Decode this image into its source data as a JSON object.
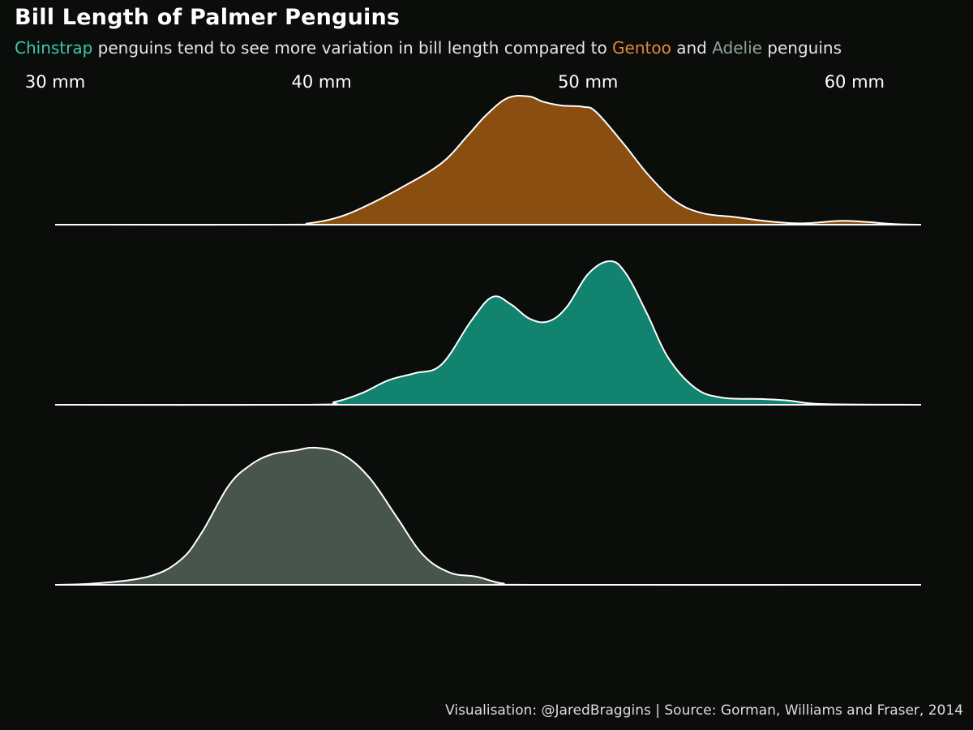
{
  "header": {
    "title": "Bill Length of Palmer Penguins",
    "subtitle_parts": [
      {
        "text": "Chinstrap",
        "role": "chinstrap"
      },
      {
        "text": " penguins tend to see more variation in bill length compared to ",
        "role": "plain"
      },
      {
        "text": "Gentoo",
        "role": "gentoo"
      },
      {
        "text": " and ",
        "role": "plain"
      },
      {
        "text": "Adelie",
        "role": "adelie"
      },
      {
        "text": " penguins",
        "role": "plain"
      }
    ]
  },
  "caption": "Visualisation: @JaredBraggins | Source: Gorman, Williams and Fraser, 2014",
  "colors": {
    "background": "#0b0d0a",
    "gentoo": "#8a4e10",
    "chinstrap": "#12836f",
    "adelie": "#48554d",
    "outline": "#ffffff",
    "chinstrap_text": "#3fc7ad",
    "gentoo_text": "#e0883a",
    "adelie_text": "#8fa39b"
  },
  "chart_data": {
    "type": "area",
    "subtype": "ridgeline density",
    "title": "Bill Length of Palmer Penguins",
    "xlabel": "",
    "ylabel": "",
    "xlim": [
      30,
      62.5
    ],
    "x_ticks": [
      30,
      40,
      50,
      60
    ],
    "x_tick_labels": [
      "30 mm",
      "40 mm",
      "50 mm",
      "60 mm"
    ],
    "x_tick_position": "top",
    "grid": false,
    "legend": "none (species named by colored words in subtitle)",
    "series": [
      {
        "name": "Gentoo",
        "color": "#8a4e10",
        "density": [
          [
            30,
            0
          ],
          [
            38.5,
            0
          ],
          [
            39.5,
            0.01
          ],
          [
            40.5,
            0.05
          ],
          [
            41.5,
            0.13
          ],
          [
            43,
            0.29
          ],
          [
            44.5,
            0.48
          ],
          [
            45.5,
            0.7
          ],
          [
            46.2,
            0.86
          ],
          [
            47,
            0.99
          ],
          [
            47.8,
            1.0
          ],
          [
            48.3,
            0.96
          ],
          [
            49,
            0.93
          ],
          [
            49.8,
            0.92
          ],
          [
            50.3,
            0.88
          ],
          [
            51.3,
            0.64
          ],
          [
            52.3,
            0.38
          ],
          [
            53.3,
            0.18
          ],
          [
            54.3,
            0.09
          ],
          [
            55.5,
            0.06
          ],
          [
            56.6,
            0.03
          ],
          [
            58,
            0.01
          ],
          [
            59.5,
            0.03
          ],
          [
            60.5,
            0.02
          ],
          [
            61.5,
            0.005
          ],
          [
            62.5,
            0
          ]
        ]
      },
      {
        "name": "Chinstrap",
        "color": "#12836f",
        "density": [
          [
            30,
            0
          ],
          [
            39.5,
            0
          ],
          [
            40.5,
            0.02
          ],
          [
            41.5,
            0.08
          ],
          [
            42.5,
            0.17
          ],
          [
            43.5,
            0.22
          ],
          [
            44.5,
            0.28
          ],
          [
            45.6,
            0.58
          ],
          [
            46.4,
            0.75
          ],
          [
            47.1,
            0.7
          ],
          [
            47.8,
            0.6
          ],
          [
            48.5,
            0.58
          ],
          [
            49.2,
            0.68
          ],
          [
            50,
            0.91
          ],
          [
            50.8,
            1.0
          ],
          [
            51.4,
            0.92
          ],
          [
            52.2,
            0.64
          ],
          [
            53,
            0.33
          ],
          [
            54,
            0.12
          ],
          [
            55,
            0.05
          ],
          [
            56.5,
            0.04
          ],
          [
            57.5,
            0.03
          ],
          [
            58.8,
            0.005
          ],
          [
            62.5,
            0
          ]
        ]
      },
      {
        "name": "Adelie",
        "color": "#48554d",
        "density": [
          [
            30,
            0
          ],
          [
            31.5,
            0.01
          ],
          [
            33.5,
            0.06
          ],
          [
            34.7,
            0.18
          ],
          [
            35.5,
            0.38
          ],
          [
            36.5,
            0.72
          ],
          [
            37.3,
            0.87
          ],
          [
            38.1,
            0.95
          ],
          [
            39,
            0.98
          ],
          [
            39.8,
            1.0
          ],
          [
            40.8,
            0.95
          ],
          [
            41.8,
            0.78
          ],
          [
            42.8,
            0.5
          ],
          [
            43.8,
            0.22
          ],
          [
            44.8,
            0.09
          ],
          [
            45.8,
            0.06
          ],
          [
            46.8,
            0.01
          ],
          [
            48,
            0
          ],
          [
            62.5,
            0
          ]
        ]
      }
    ]
  }
}
